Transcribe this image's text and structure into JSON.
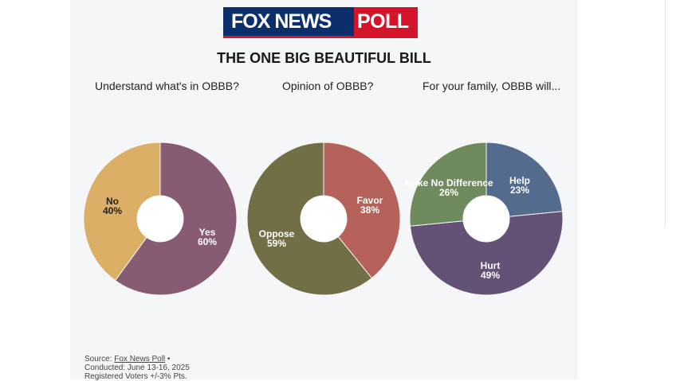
{
  "logo": {
    "left_text": "FOX NEWS",
    "right_text": "POLL"
  },
  "title": "THE ONE BIG BEAUTIFUL BILL",
  "colors": {
    "card": "#f5f6f8",
    "logo_blue": "#0b2f6b",
    "logo_red": "#d4142a"
  },
  "chart_data": [
    {
      "type": "pie",
      "title": "Understand what's in OBBB?",
      "labels": [
        "Yes",
        "No"
      ],
      "values": [
        60,
        40
      ],
      "display": [
        "60%",
        "40%"
      ],
      "colors": [
        "#875b74",
        "#dcaf67"
      ]
    },
    {
      "type": "pie",
      "title": "Opinion of OBBB?",
      "labels": [
        "Favor",
        "Oppose"
      ],
      "values": [
        38,
        59
      ],
      "display": [
        "38%",
        "59%"
      ],
      "colors": [
        "#b4625a",
        "#726f47"
      ]
    },
    {
      "type": "pie",
      "title": "For your family, OBBB will...",
      "labels": [
        "Help",
        "Hurt",
        "Make No Difference"
      ],
      "values": [
        23,
        49,
        26
      ],
      "display": [
        "23%",
        "49%",
        "26%"
      ],
      "colors": [
        "#536b8d",
        "#645176",
        "#6f8b5e"
      ]
    }
  ],
  "footer": {
    "source_prefix": "Source: ",
    "source_link": "Fox News Poll",
    "source_suffix": " •",
    "conducted": "Conducted: June 13-16, 2025",
    "sample": "Registered Voters +/-3% Pts."
  }
}
